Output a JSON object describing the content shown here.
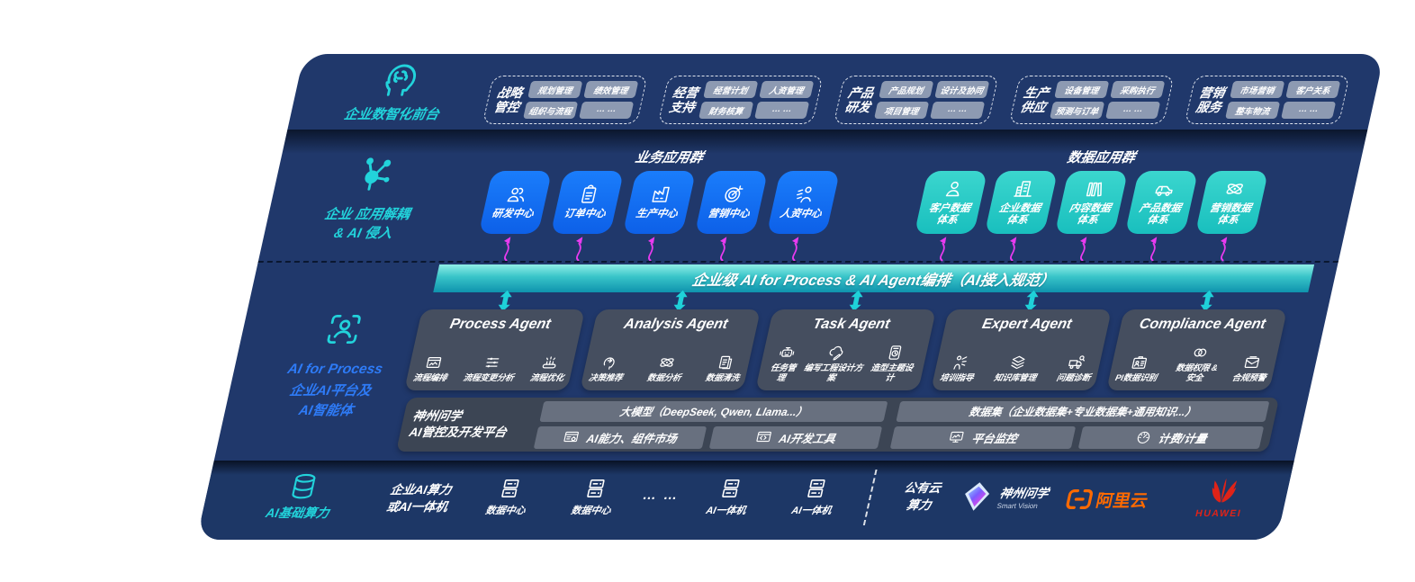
{
  "colors": {
    "panel_navy": "#20386B",
    "app_blue": "#1470F5",
    "app_teal": "#2AC9C4",
    "band_teal": "#37C3C8",
    "accent_teal": "#22D3DB",
    "accent_blue": "#2E7BF7",
    "arrow_magenta": "#E93BF0",
    "arrow_cyan": "#1FD1D9",
    "agent_gray": "#454E5F",
    "platform_gray": "#3C4554",
    "aliyun_orange": "#FF6A00",
    "huawei_red": "#DF2318"
  },
  "front_office": {
    "label": "企业数智化前台",
    "icon": "brain-head",
    "groups": [
      {
        "title": "战略\n管控",
        "items": [
          "规划管理",
          "绩效管理",
          "组织与流程",
          "… …"
        ]
      },
      {
        "title": "经营\n支持",
        "items": [
          "经营计划",
          "人资管理",
          "财务核算",
          "… …"
        ]
      },
      {
        "title": "产品\n研发",
        "items": [
          "产品规划",
          "设计及协同",
          "项目管理",
          "… …"
        ]
      },
      {
        "title": "生产\n供应",
        "items": [
          "设备管理",
          "采购执行",
          "预测与订单",
          "… …"
        ]
      },
      {
        "title": "营销\n服务",
        "items": [
          "市场营销",
          "客户关系",
          "整车物流",
          "… …"
        ]
      }
    ]
  },
  "application_layer": {
    "label": "企业 应用解耦\n& AI 侵入",
    "icon": "molecule",
    "business": {
      "title": "业务应用群",
      "boxes": [
        {
          "label": "研发中心",
          "icon": "team"
        },
        {
          "label": "订单中心",
          "icon": "clipboard"
        },
        {
          "label": "生产中心",
          "icon": "factory"
        },
        {
          "label": "营销中心",
          "icon": "target"
        },
        {
          "label": "人资中心",
          "icon": "people-hr"
        }
      ]
    },
    "data": {
      "title": "数据应用群",
      "boxes": [
        {
          "label": "客户数据\n体系",
          "icon": "person"
        },
        {
          "label": "企业数据\n体系",
          "icon": "building"
        },
        {
          "label": "内容数据\n体系",
          "icon": "books"
        },
        {
          "label": "产品数据\n体系",
          "icon": "car"
        },
        {
          "label": "营销数据\n体系",
          "icon": "atom"
        }
      ]
    }
  },
  "orchestration": {
    "label": "企业级 AI for Process & AI Agent编排（AI接入规范）"
  },
  "agent_layer": {
    "rail": {
      "title": "AI for Process",
      "subtitle": "企业AI平台及\nAI智能体",
      "icon": "scan-person"
    },
    "agents": [
      {
        "title": "Process Agent",
        "items": [
          {
            "label": "流程编排",
            "icon": "box-wave"
          },
          {
            "label": "流程变更分析",
            "icon": "sliders"
          },
          {
            "label": "流程优化",
            "icon": "conveyor"
          }
        ]
      },
      {
        "title": "Analysis Agent",
        "items": [
          {
            "label": "决策推荐",
            "icon": "head-idea"
          },
          {
            "label": "数据分析",
            "icon": "atom"
          },
          {
            "label": "数据清洗",
            "icon": "doc-data"
          }
        ]
      },
      {
        "title": "Task Agent",
        "items": [
          {
            "label": "任务管理",
            "icon": "robot"
          },
          {
            "label": "编写工程设计方案",
            "icon": "cloud-pen"
          },
          {
            "label": "造型主题设计",
            "icon": "tablet-check"
          }
        ]
      },
      {
        "title": "Expert Agent",
        "items": [
          {
            "label": "培训指导",
            "icon": "training"
          },
          {
            "label": "知识库管理",
            "icon": "layers"
          },
          {
            "label": "问题诊断",
            "icon": "truck-scan"
          }
        ]
      },
      {
        "title": "Compliance Agent",
        "items": [
          {
            "label": "PI数据识别",
            "icon": "id-card"
          },
          {
            "label": "数据权限 &\n安全",
            "icon": "rings"
          },
          {
            "label": "合规预警",
            "icon": "mail"
          }
        ]
      }
    ]
  },
  "platform": {
    "name": "神州问学\nAI管控及开发平台",
    "model_strip": "大模型（DeepSeek, Qwen, Llama...）",
    "cells_left": [
      {
        "label": "AI能力、组件市场",
        "icon": "window-gear"
      },
      {
        "label": "AI开发工具",
        "icon": "window-code"
      }
    ],
    "dataset_strip": "数据集（企业数据集+专业数据集+通用知识...）",
    "cells_right": [
      {
        "label": "平台监控",
        "icon": "monitor"
      },
      {
        "label": "计费/计量",
        "icon": "gauge"
      }
    ]
  },
  "infra": {
    "label": "AI基础算力",
    "icon": "database",
    "compute": "企业AI算力\n或AI一体机",
    "datacenters": [
      "数据中心",
      "数据中心"
    ],
    "dots": "… …",
    "aio": [
      "AI一体机",
      "AI一体机"
    ],
    "public_cloud": "公有云\n算力",
    "logos": {
      "sv_name": "神州问学",
      "sv_sub": "Smart Vision",
      "aliyun": "阿里云",
      "huawei": "HUAWEI"
    }
  }
}
